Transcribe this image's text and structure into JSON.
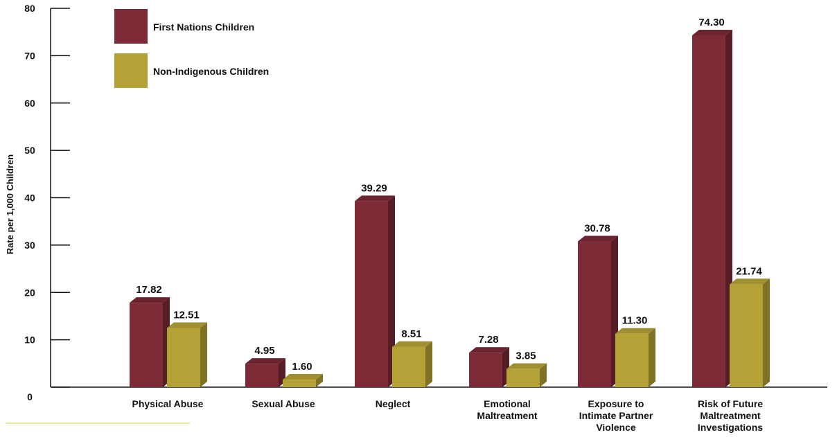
{
  "chart_data": {
    "type": "bar",
    "categories": [
      [
        "Physical Abuse"
      ],
      [
        "Sexual Abuse"
      ],
      [
        "Neglect"
      ],
      [
        "Emotional",
        "Maltreatment"
      ],
      [
        "Exposure to",
        "Intimate Partner",
        "Violence"
      ],
      [
        "Risk of Future",
        "Maltreatment",
        "Investigations"
      ]
    ],
    "series": [
      {
        "name": "First Nations Children",
        "values": [
          17.82,
          4.95,
          39.29,
          7.28,
          30.78,
          74.3
        ],
        "labels": [
          "17.82",
          "4.95",
          "39.29",
          "7.28",
          "30.78",
          "74.30"
        ],
        "color": "#7b2a36"
      },
      {
        "name": "Non-Indigenous Children",
        "values": [
          12.51,
          1.6,
          8.51,
          3.85,
          11.3,
          21.74
        ],
        "labels": [
          "12.51",
          "1.60",
          "8.51",
          "3.85",
          "11.30",
          "21.74"
        ],
        "color": "#b5a236"
      }
    ],
    "title": "",
    "xlabel": "",
    "ylabel": "Rate per 1,000 Children",
    "ylim": [
      0,
      80
    ],
    "yticks": [
      0,
      10,
      20,
      30,
      40,
      50,
      60,
      70,
      80
    ],
    "grid": false,
    "legend_position": "top-left",
    "style": "3d-bar"
  }
}
